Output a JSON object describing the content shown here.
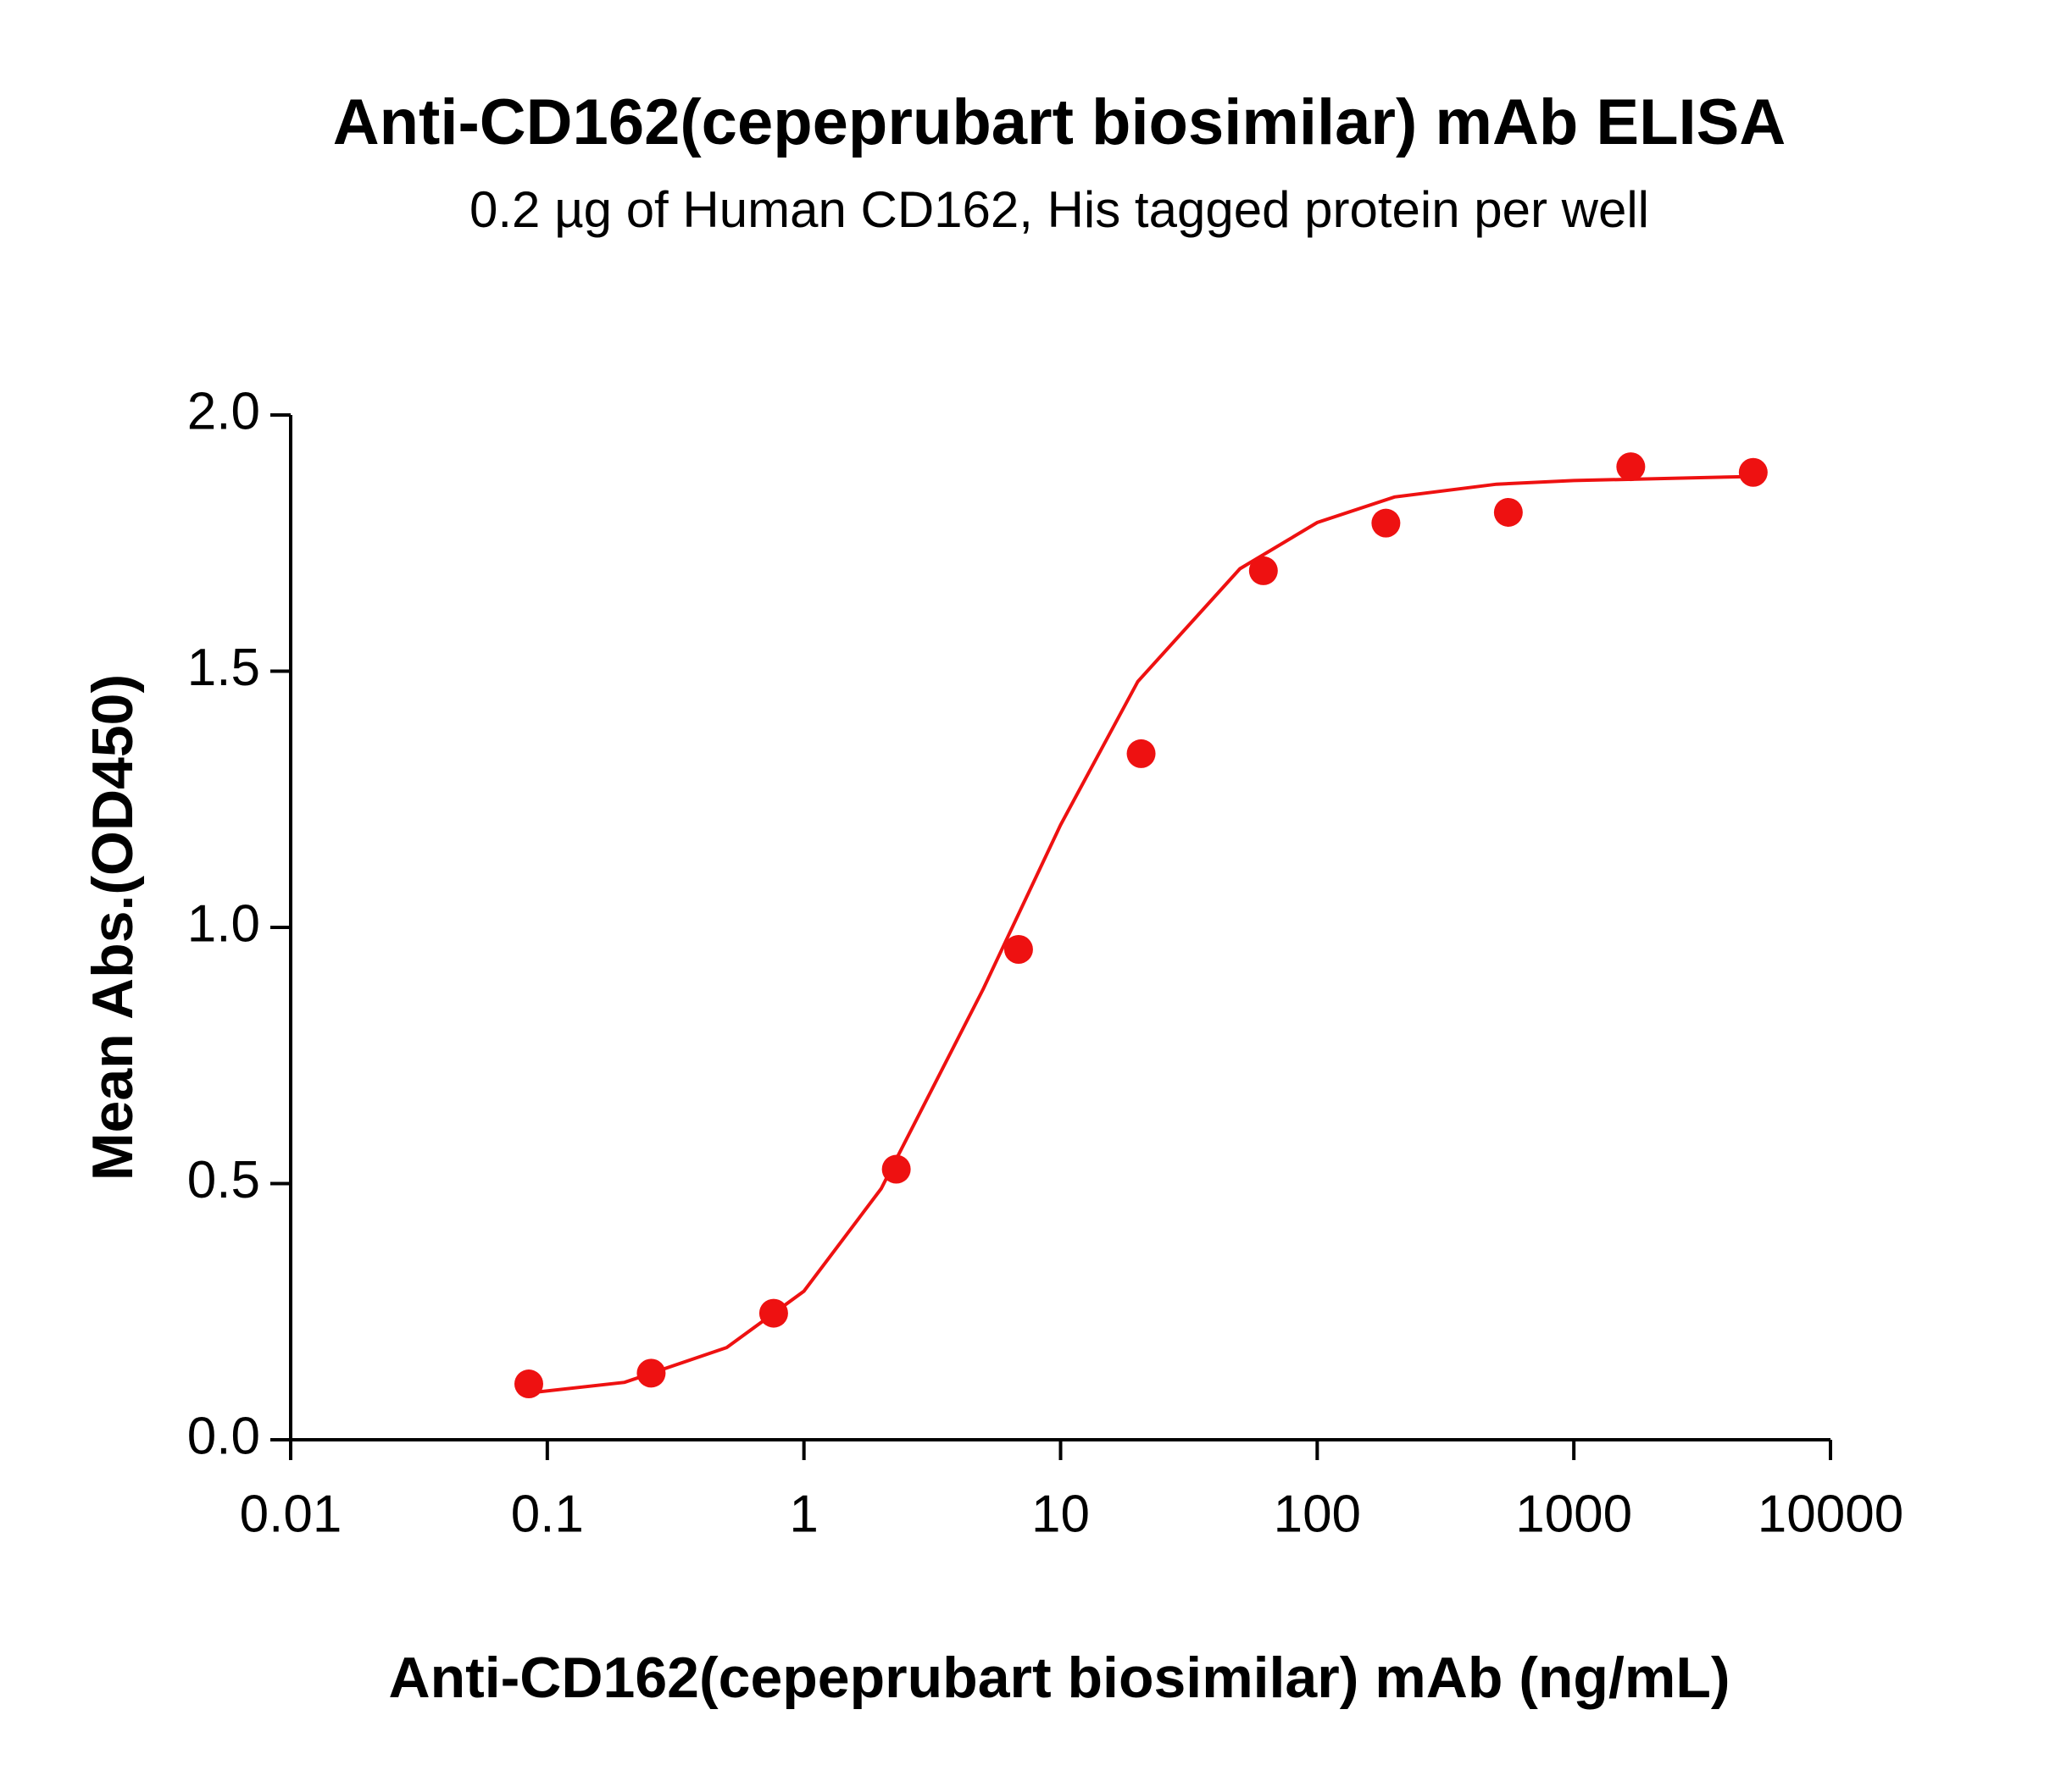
{
  "chart_data": {
    "type": "scatter",
    "title": "Anti-CD162(cepeprubart biosimilar) mAb ELISA",
    "subtitle": "0.2 µg of Human CD162, His tagged protein per well",
    "x_label": "Anti-CD162(cepeprubart biosimilar) mAb (ng/mL)",
    "y_label": "Mean Abs.(OD450)",
    "x_scale": "log",
    "xlim": [
      0.01,
      10000
    ],
    "xticks": [
      0.01,
      0.1,
      1,
      10,
      100,
      1000,
      10000
    ],
    "ylim": [
      0,
      2
    ],
    "yticks": [
      {
        "value": 0,
        "label": "0.0"
      },
      0.5,
      {
        "value": 1,
        "label": "1.0"
      },
      1.5,
      {
        "value": 2,
        "label": "2.0"
      }
    ],
    "grid": false,
    "series": [
      {
        "color": "#ee1111",
        "x": [
          0.0847,
          0.254,
          0.762,
          2.29,
          6.86,
          20.6,
          61.7,
          185.2,
          555.6,
          1666.7,
          5000
        ],
        "values": [
          0.109,
          0.13,
          0.247,
          0.528,
          0.957,
          1.339,
          1.696,
          1.789,
          1.81,
          1.899,
          1.888
        ]
      }
    ],
    "fit": {
      "color": "#ee1111",
      "x": [
        0.08,
        0.2,
        0.5,
        1,
        2,
        5,
        10,
        20,
        50,
        100,
        200,
        500,
        1000,
        5000
      ],
      "values": [
        0.09,
        0.112,
        0.18,
        0.29,
        0.49,
        0.88,
        1.2,
        1.48,
        1.7,
        1.79,
        1.84,
        1.865,
        1.872,
        1.88
      ]
    }
  }
}
